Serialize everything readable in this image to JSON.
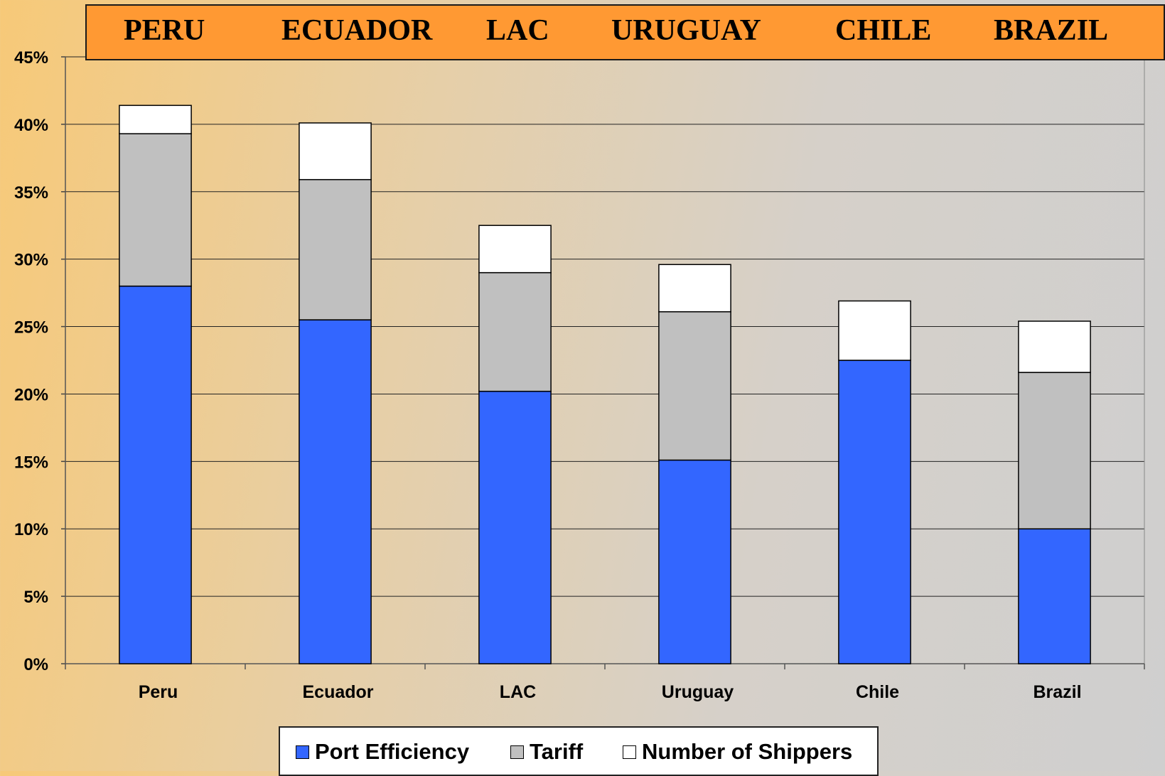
{
  "header": {
    "labels": [
      "PERU",
      "ECUADOR",
      "LAC",
      "URUGUAY",
      "CHILE",
      "BRAZIL"
    ]
  },
  "colors": {
    "port_efficiency": "#3366ff",
    "tariff": "#c0c0c0",
    "number_of_shippers": "#ffffff",
    "header_background": "#ff9933"
  },
  "legend": {
    "port_efficiency": "Port Efficiency",
    "tariff": "Tariff",
    "number_of_shippers": "Number of Shippers"
  },
  "chart_data": {
    "type": "bar",
    "stacked": true,
    "categories": [
      "Peru",
      "Ecuador",
      "LAC",
      "Uruguay",
      "Chile",
      "Brazil"
    ],
    "series": [
      {
        "name": "Port Efficiency",
        "values": [
          28.0,
          25.5,
          20.2,
          15.1,
          22.5,
          10.0
        ]
      },
      {
        "name": "Tariff",
        "values": [
          11.3,
          10.4,
          8.8,
          11.0,
          0,
          11.6
        ]
      },
      {
        "name": "Number of Shippers",
        "values": [
          2.1,
          4.2,
          3.5,
          3.5,
          4.4,
          3.8
        ]
      }
    ],
    "ylim": [
      0,
      45
    ],
    "yticks": [
      "0%",
      "5%",
      "10%",
      "15%",
      "20%",
      "25%",
      "30%",
      "35%",
      "40%",
      "45%"
    ],
    "ytick_values": [
      0,
      5,
      10,
      15,
      20,
      25,
      30,
      35,
      40,
      45
    ],
    "title": "",
    "xlabel": "",
    "ylabel": "",
    "grid": true,
    "legend_position": "bottom"
  }
}
